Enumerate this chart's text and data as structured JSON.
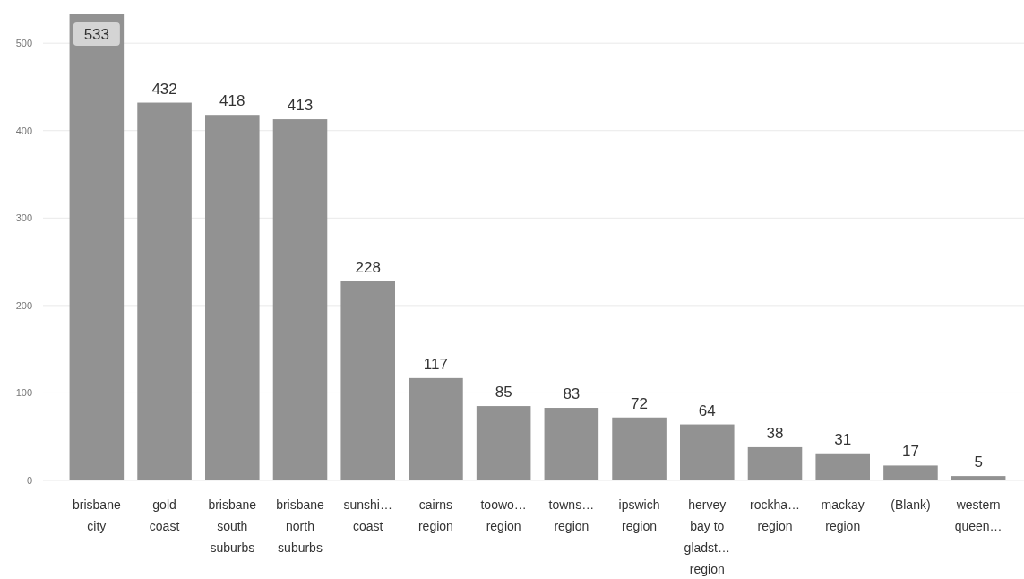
{
  "chart_data": {
    "type": "bar",
    "categories": [
      "brisbane city",
      "gold coast",
      "brisbane south suburbs",
      "brisbane north suburbs",
      "sunshi… coast",
      "cairns region",
      "toowo… region",
      "towns… region",
      "ipswich region",
      "hervey bay to gladst… region",
      "rockha… region",
      "mackay region",
      "(Blank)",
      "western queen…"
    ],
    "values": [
      533,
      432,
      418,
      413,
      228,
      117,
      85,
      83,
      72,
      64,
      38,
      31,
      17,
      5
    ],
    "color": "#929292",
    "ylim": [
      0,
      533
    ],
    "yticks": [
      0,
      100,
      200,
      300,
      400,
      500
    ],
    "grid": "y",
    "data_labels": true
  }
}
